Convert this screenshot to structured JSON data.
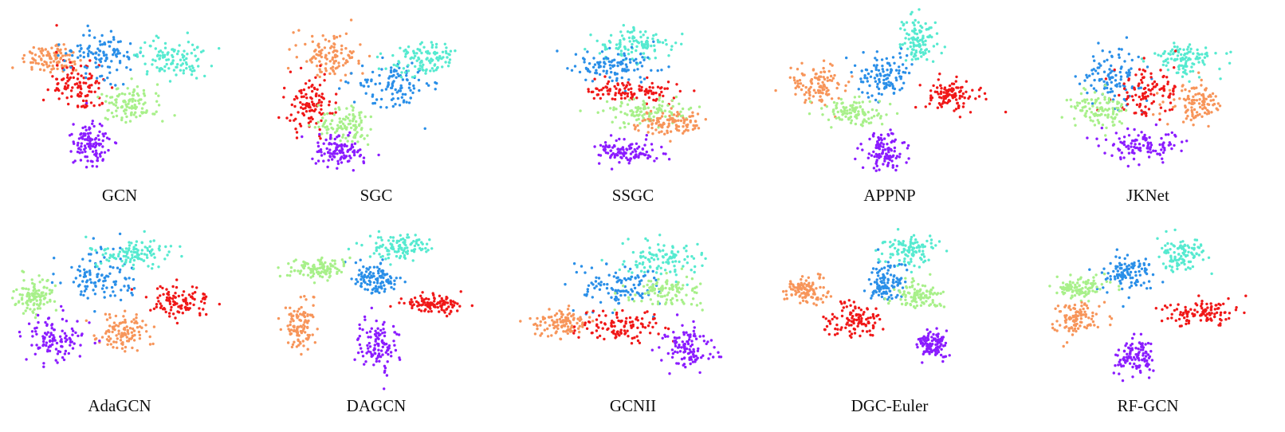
{
  "palette": {
    "class_0": "#8b1cff",
    "class_1": "#2a8fe8",
    "class_2": "#56ead0",
    "class_3": "#a8f08a",
    "class_4": "#f7955a",
    "class_5": "#f01818"
  },
  "chart_data": [
    {
      "type": "scatter",
      "title": "GCN",
      "grid": false,
      "legend": "none",
      "clusters": [
        {
          "class": "class_4",
          "cx": 0.22,
          "cy": 0.3,
          "sx": 0.13,
          "sy": 0.09
        },
        {
          "class": "class_5",
          "cx": 0.33,
          "cy": 0.45,
          "sx": 0.12,
          "sy": 0.16
        },
        {
          "class": "class_1",
          "cx": 0.42,
          "cy": 0.28,
          "sx": 0.14,
          "sy": 0.14
        },
        {
          "class": "class_2",
          "cx": 0.72,
          "cy": 0.3,
          "sx": 0.14,
          "sy": 0.1
        },
        {
          "class": "class_3",
          "cx": 0.55,
          "cy": 0.55,
          "sx": 0.12,
          "sy": 0.1
        },
        {
          "class": "class_0",
          "cx": 0.38,
          "cy": 0.78,
          "sx": 0.07,
          "sy": 0.12
        }
      ]
    },
    {
      "type": "scatter",
      "title": "SGC",
      "grid": false,
      "legend": "none",
      "clusters": [
        {
          "class": "class_4",
          "cx": 0.3,
          "cy": 0.28,
          "sx": 0.14,
          "sy": 0.13
        },
        {
          "class": "class_5",
          "cx": 0.22,
          "cy": 0.55,
          "sx": 0.1,
          "sy": 0.16
        },
        {
          "class": "class_1",
          "cx": 0.58,
          "cy": 0.45,
          "sx": 0.15,
          "sy": 0.14
        },
        {
          "class": "class_2",
          "cx": 0.7,
          "cy": 0.3,
          "sx": 0.16,
          "sy": 0.1
        },
        {
          "class": "class_3",
          "cx": 0.38,
          "cy": 0.68,
          "sx": 0.12,
          "sy": 0.1
        },
        {
          "class": "class_0",
          "cx": 0.35,
          "cy": 0.82,
          "sx": 0.1,
          "sy": 0.08
        }
      ]
    },
    {
      "type": "scatter",
      "title": "SSGC",
      "grid": false,
      "legend": "none",
      "clusters": [
        {
          "class": "class_2",
          "cx": 0.5,
          "cy": 0.22,
          "sx": 0.18,
          "sy": 0.09
        },
        {
          "class": "class_1",
          "cx": 0.42,
          "cy": 0.35,
          "sx": 0.16,
          "sy": 0.1
        },
        {
          "class": "class_5",
          "cx": 0.5,
          "cy": 0.48,
          "sx": 0.2,
          "sy": 0.06
        },
        {
          "class": "class_3",
          "cx": 0.55,
          "cy": 0.6,
          "sx": 0.18,
          "sy": 0.07
        },
        {
          "class": "class_4",
          "cx": 0.65,
          "cy": 0.66,
          "sx": 0.14,
          "sy": 0.07
        },
        {
          "class": "class_0",
          "cx": 0.48,
          "cy": 0.82,
          "sx": 0.12,
          "sy": 0.07
        }
      ]
    },
    {
      "type": "scatter",
      "title": "APPNP",
      "grid": false,
      "legend": "none",
      "clusters": [
        {
          "class": "class_2",
          "cx": 0.62,
          "cy": 0.2,
          "sx": 0.08,
          "sy": 0.12
        },
        {
          "class": "class_1",
          "cx": 0.48,
          "cy": 0.4,
          "sx": 0.12,
          "sy": 0.12
        },
        {
          "class": "class_4",
          "cx": 0.2,
          "cy": 0.45,
          "sx": 0.11,
          "sy": 0.12
        },
        {
          "class": "class_5",
          "cx": 0.75,
          "cy": 0.5,
          "sx": 0.13,
          "sy": 0.09
        },
        {
          "class": "class_3",
          "cx": 0.35,
          "cy": 0.6,
          "sx": 0.12,
          "sy": 0.07
        },
        {
          "class": "class_0",
          "cx": 0.48,
          "cy": 0.82,
          "sx": 0.09,
          "sy": 0.1
        }
      ]
    },
    {
      "type": "scatter",
      "title": "JKNet",
      "grid": false,
      "legend": "none",
      "clusters": [
        {
          "class": "class_2",
          "cx": 0.65,
          "cy": 0.3,
          "sx": 0.16,
          "sy": 0.1
        },
        {
          "class": "class_1",
          "cx": 0.35,
          "cy": 0.4,
          "sx": 0.14,
          "sy": 0.14
        },
        {
          "class": "class_5",
          "cx": 0.5,
          "cy": 0.48,
          "sx": 0.14,
          "sy": 0.13
        },
        {
          "class": "class_3",
          "cx": 0.3,
          "cy": 0.58,
          "sx": 0.12,
          "sy": 0.1
        },
        {
          "class": "class_4",
          "cx": 0.7,
          "cy": 0.55,
          "sx": 0.12,
          "sy": 0.1
        },
        {
          "class": "class_0",
          "cx": 0.48,
          "cy": 0.78,
          "sx": 0.14,
          "sy": 0.08
        }
      ]
    },
    {
      "type": "scatter",
      "title": "AdaGCN",
      "grid": false,
      "legend": "none",
      "clusters": [
        {
          "class": "class_1",
          "cx": 0.42,
          "cy": 0.35,
          "sx": 0.16,
          "sy": 0.14
        },
        {
          "class": "class_2",
          "cx": 0.55,
          "cy": 0.22,
          "sx": 0.16,
          "sy": 0.08
        },
        {
          "class": "class_3",
          "cx": 0.15,
          "cy": 0.45,
          "sx": 0.08,
          "sy": 0.1
        },
        {
          "class": "class_5",
          "cx": 0.75,
          "cy": 0.48,
          "sx": 0.11,
          "sy": 0.09
        },
        {
          "class": "class_4",
          "cx": 0.52,
          "cy": 0.65,
          "sx": 0.12,
          "sy": 0.1
        },
        {
          "class": "class_0",
          "cx": 0.22,
          "cy": 0.68,
          "sx": 0.12,
          "sy": 0.12
        }
      ]
    },
    {
      "type": "scatter",
      "title": "DAGCN",
      "grid": false,
      "legend": "none",
      "clusters": [
        {
          "class": "class_2",
          "cx": 0.6,
          "cy": 0.18,
          "sx": 0.14,
          "sy": 0.07
        },
        {
          "class": "class_1",
          "cx": 0.5,
          "cy": 0.35,
          "sx": 0.1,
          "sy": 0.09
        },
        {
          "class": "class_3",
          "cx": 0.25,
          "cy": 0.3,
          "sx": 0.12,
          "sy": 0.05
        },
        {
          "class": "class_5",
          "cx": 0.75,
          "cy": 0.5,
          "sx": 0.13,
          "sy": 0.05
        },
        {
          "class": "class_4",
          "cx": 0.18,
          "cy": 0.62,
          "sx": 0.06,
          "sy": 0.12
        },
        {
          "class": "class_0",
          "cx": 0.5,
          "cy": 0.72,
          "sx": 0.09,
          "sy": 0.15
        }
      ]
    },
    {
      "type": "scatter",
      "title": "GCNII",
      "grid": false,
      "legend": "none",
      "clusters": [
        {
          "class": "class_2",
          "cx": 0.62,
          "cy": 0.25,
          "sx": 0.16,
          "sy": 0.1
        },
        {
          "class": "class_1",
          "cx": 0.45,
          "cy": 0.4,
          "sx": 0.16,
          "sy": 0.13
        },
        {
          "class": "class_3",
          "cx": 0.65,
          "cy": 0.42,
          "sx": 0.14,
          "sy": 0.1
        },
        {
          "class": "class_4",
          "cx": 0.2,
          "cy": 0.6,
          "sx": 0.12,
          "sy": 0.08
        },
        {
          "class": "class_5",
          "cx": 0.45,
          "cy": 0.62,
          "sx": 0.16,
          "sy": 0.09
        },
        {
          "class": "class_0",
          "cx": 0.72,
          "cy": 0.75,
          "sx": 0.1,
          "sy": 0.11
        }
      ]
    },
    {
      "type": "scatter",
      "title": "DGC-Euler",
      "grid": false,
      "legend": "none",
      "clusters": [
        {
          "class": "class_2",
          "cx": 0.58,
          "cy": 0.2,
          "sx": 0.12,
          "sy": 0.08
        },
        {
          "class": "class_1",
          "cx": 0.48,
          "cy": 0.38,
          "sx": 0.08,
          "sy": 0.12
        },
        {
          "class": "class_3",
          "cx": 0.62,
          "cy": 0.45,
          "sx": 0.1,
          "sy": 0.07
        },
        {
          "class": "class_4",
          "cx": 0.15,
          "cy": 0.42,
          "sx": 0.1,
          "sy": 0.08
        },
        {
          "class": "class_5",
          "cx": 0.35,
          "cy": 0.58,
          "sx": 0.12,
          "sy": 0.1
        },
        {
          "class": "class_0",
          "cx": 0.68,
          "cy": 0.72,
          "sx": 0.06,
          "sy": 0.08
        }
      ]
    },
    {
      "type": "scatter",
      "title": "RF-GCN",
      "grid": false,
      "legend": "none",
      "clusters": [
        {
          "class": "class_2",
          "cx": 0.65,
          "cy": 0.22,
          "sx": 0.1,
          "sy": 0.1
        },
        {
          "class": "class_1",
          "cx": 0.42,
          "cy": 0.32,
          "sx": 0.11,
          "sy": 0.1
        },
        {
          "class": "class_3",
          "cx": 0.22,
          "cy": 0.4,
          "sx": 0.1,
          "sy": 0.06
        },
        {
          "class": "class_4",
          "cx": 0.2,
          "cy": 0.58,
          "sx": 0.09,
          "sy": 0.09
        },
        {
          "class": "class_5",
          "cx": 0.72,
          "cy": 0.55,
          "sx": 0.14,
          "sy": 0.07
        },
        {
          "class": "class_0",
          "cx": 0.45,
          "cy": 0.78,
          "sx": 0.09,
          "sy": 0.09
        }
      ]
    }
  ]
}
